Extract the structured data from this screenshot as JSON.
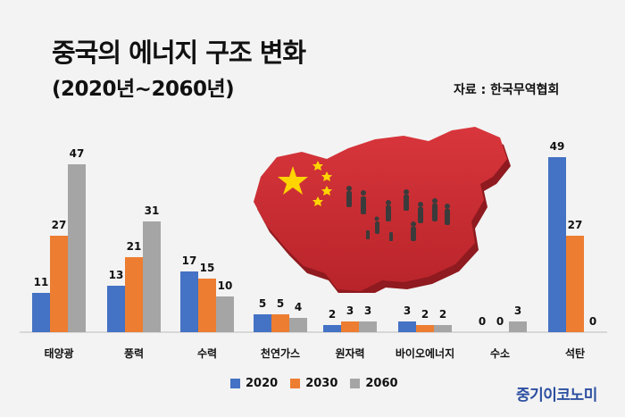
{
  "title": "중국의 에너지 구조 변화",
  "subtitle": "(2020년~2060년)",
  "source": "자료 : 한국무역협회",
  "brand": "중기이코노미",
  "colors": {
    "s2020": "#4472c4",
    "s2030": "#ed7d31",
    "s2060": "#a5a5a5"
  },
  "chart_data": {
    "type": "bar",
    "categories": [
      "태양광",
      "풍력",
      "수력",
      "천연가스",
      "원자력",
      "바이오에너지",
      "수소",
      "석탄"
    ],
    "series": [
      {
        "name": "2020",
        "values": [
          11,
          13,
          17,
          5,
          2,
          3,
          0,
          49
        ]
      },
      {
        "name": "2030",
        "values": [
          27,
          21,
          15,
          5,
          3,
          2,
          0,
          27
        ]
      },
      {
        "name": "2060",
        "values": [
          47,
          31,
          10,
          4,
          3,
          2,
          3,
          0
        ]
      }
    ],
    "ylim": [
      0,
      50
    ],
    "legend": "bottom-center",
    "grid": false
  }
}
